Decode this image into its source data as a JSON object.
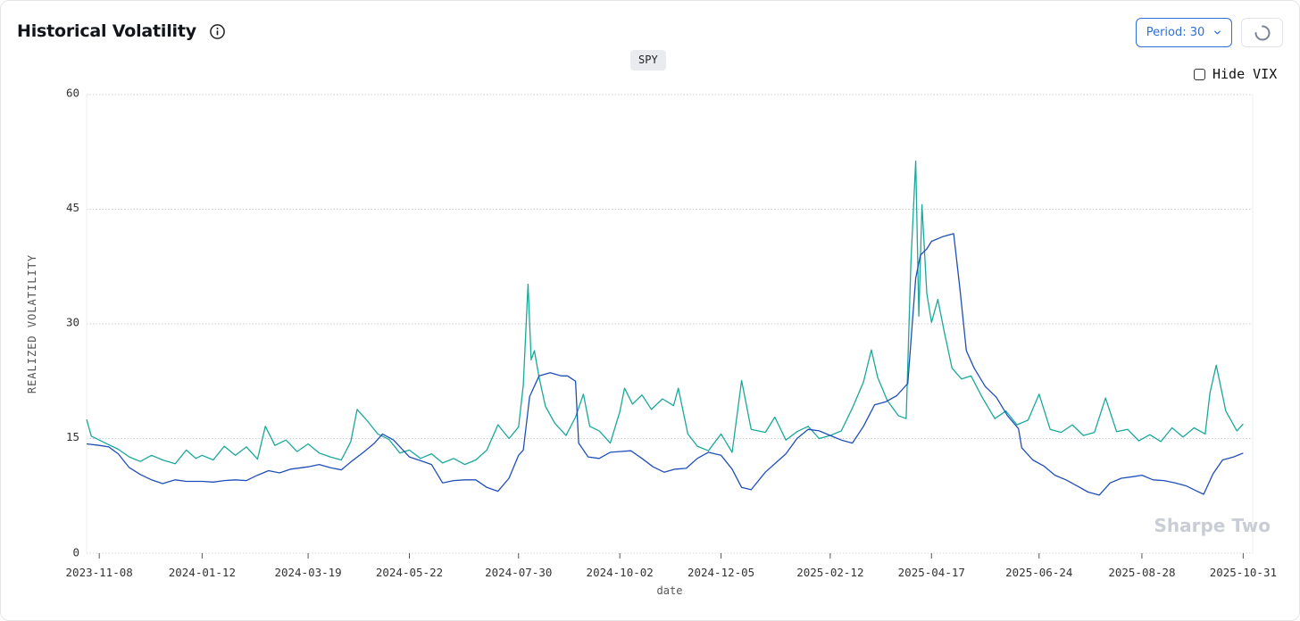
{
  "header": {
    "title": "Historical Volatility",
    "period_label": "Period: 30",
    "ticker_badge": "SPY",
    "hide_vix_label": "Hide VIX",
    "hide_vix_checked": false
  },
  "icons": {
    "info": "info-icon",
    "dropdown": "chevron-down-icon",
    "refresh": "loading-spinner-icon"
  },
  "watermark": "Sharpe Two",
  "chart_data": {
    "type": "line",
    "xlabel": "date",
    "ylabel": "REALIZED VOLATILITY",
    "ylim": [
      0,
      60
    ],
    "yticks": [
      0,
      15,
      30,
      45,
      60
    ],
    "xrange": [
      "2023-10-31",
      "2025-11-06"
    ],
    "xticks": [
      "2023-11-08",
      "2024-01-12",
      "2024-03-19",
      "2024-05-22",
      "2024-07-30",
      "2024-10-02",
      "2024-12-05",
      "2025-02-12",
      "2025-04-17",
      "2025-06-24",
      "2025-08-28",
      "2025-10-31"
    ],
    "grid": true,
    "colors": {
      "teal": "#1aa89a",
      "blue": "#1f4fb8"
    },
    "series": [
      {
        "color": "#1aa89a",
        "points": [
          [
            "2023-10-31",
            17.5
          ],
          [
            "2023-11-03",
            15.3
          ],
          [
            "2023-11-08",
            14.8
          ],
          [
            "2023-11-14",
            14.2
          ],
          [
            "2023-11-20",
            13.6
          ],
          [
            "2023-11-27",
            12.6
          ],
          [
            "2023-12-04",
            12.0
          ],
          [
            "2023-12-11",
            12.8
          ],
          [
            "2023-12-18",
            12.2
          ],
          [
            "2023-12-26",
            11.7
          ],
          [
            "2024-01-02",
            13.5
          ],
          [
            "2024-01-08",
            12.4
          ],
          [
            "2024-01-12",
            12.8
          ],
          [
            "2024-01-19",
            12.2
          ],
          [
            "2024-01-26",
            14.0
          ],
          [
            "2024-02-02",
            12.8
          ],
          [
            "2024-02-09",
            13.9
          ],
          [
            "2024-02-16",
            12.3
          ],
          [
            "2024-02-21",
            16.6
          ],
          [
            "2024-02-27",
            14.1
          ],
          [
            "2024-03-05",
            14.8
          ],
          [
            "2024-03-12",
            13.3
          ],
          [
            "2024-03-19",
            14.3
          ],
          [
            "2024-03-26",
            13.1
          ],
          [
            "2024-04-02",
            12.6
          ],
          [
            "2024-04-09",
            12.2
          ],
          [
            "2024-04-15",
            14.6
          ],
          [
            "2024-04-19",
            18.8
          ],
          [
            "2024-04-25",
            17.4
          ],
          [
            "2024-05-02",
            15.6
          ],
          [
            "2024-05-09",
            14.9
          ],
          [
            "2024-05-16",
            13.1
          ],
          [
            "2024-05-22",
            13.5
          ],
          [
            "2024-05-29",
            12.4
          ],
          [
            "2024-06-05",
            13.0
          ],
          [
            "2024-06-12",
            11.8
          ],
          [
            "2024-06-19",
            12.4
          ],
          [
            "2024-06-26",
            11.6
          ],
          [
            "2024-07-03",
            12.2
          ],
          [
            "2024-07-10",
            13.5
          ],
          [
            "2024-07-17",
            16.8
          ],
          [
            "2024-07-24",
            15.0
          ],
          [
            "2024-07-30",
            16.5
          ],
          [
            "2024-08-02",
            22.0
          ],
          [
            "2024-08-05",
            35.2
          ],
          [
            "2024-08-07",
            25.3
          ],
          [
            "2024-08-09",
            26.5
          ],
          [
            "2024-08-12",
            23.0
          ],
          [
            "2024-08-16",
            19.2
          ],
          [
            "2024-08-22",
            17.0
          ],
          [
            "2024-08-29",
            15.4
          ],
          [
            "2024-09-04",
            17.8
          ],
          [
            "2024-09-09",
            20.8
          ],
          [
            "2024-09-13",
            16.6
          ],
          [
            "2024-09-19",
            16.0
          ],
          [
            "2024-09-26",
            14.4
          ],
          [
            "2024-10-02",
            18.5
          ],
          [
            "2024-10-05",
            21.6
          ],
          [
            "2024-10-10",
            19.5
          ],
          [
            "2024-10-16",
            20.7
          ],
          [
            "2024-10-22",
            18.8
          ],
          [
            "2024-10-29",
            20.2
          ],
          [
            "2024-11-05",
            19.3
          ],
          [
            "2024-11-08",
            21.6
          ],
          [
            "2024-11-14",
            15.6
          ],
          [
            "2024-11-20",
            14.0
          ],
          [
            "2024-11-27",
            13.4
          ],
          [
            "2024-12-05",
            15.6
          ],
          [
            "2024-12-12",
            13.2
          ],
          [
            "2024-12-18",
            22.6
          ],
          [
            "2024-12-24",
            16.2
          ],
          [
            "2025-01-02",
            15.8
          ],
          [
            "2025-01-08",
            17.8
          ],
          [
            "2025-01-15",
            14.8
          ],
          [
            "2025-01-22",
            15.9
          ],
          [
            "2025-01-29",
            16.6
          ],
          [
            "2025-02-05",
            15.0
          ],
          [
            "2025-02-12",
            15.4
          ],
          [
            "2025-02-19",
            16.0
          ],
          [
            "2025-02-26",
            19.0
          ],
          [
            "2025-03-05",
            22.4
          ],
          [
            "2025-03-10",
            26.6
          ],
          [
            "2025-03-14",
            23.0
          ],
          [
            "2025-03-20",
            20.0
          ],
          [
            "2025-03-27",
            18.0
          ],
          [
            "2025-04-01",
            17.6
          ],
          [
            "2025-04-04",
            38.0
          ],
          [
            "2025-04-07",
            51.3
          ],
          [
            "2025-04-09",
            31.0
          ],
          [
            "2025-04-11",
            45.6
          ],
          [
            "2025-04-14",
            34.0
          ],
          [
            "2025-04-17",
            30.2
          ],
          [
            "2025-04-21",
            33.2
          ],
          [
            "2025-04-25",
            29.0
          ],
          [
            "2025-04-30",
            24.2
          ],
          [
            "2025-05-06",
            22.8
          ],
          [
            "2025-05-12",
            23.2
          ],
          [
            "2025-05-19",
            20.4
          ],
          [
            "2025-05-27",
            17.6
          ],
          [
            "2025-06-03",
            18.6
          ],
          [
            "2025-06-10",
            16.8
          ],
          [
            "2025-06-17",
            17.4
          ],
          [
            "2025-06-24",
            20.8
          ],
          [
            "2025-07-01",
            16.2
          ],
          [
            "2025-07-08",
            15.8
          ],
          [
            "2025-07-15",
            16.8
          ],
          [
            "2025-07-22",
            15.4
          ],
          [
            "2025-07-29",
            15.8
          ],
          [
            "2025-08-05",
            20.3
          ],
          [
            "2025-08-12",
            15.9
          ],
          [
            "2025-08-19",
            16.2
          ],
          [
            "2025-08-26",
            14.7
          ],
          [
            "2025-09-02",
            15.5
          ],
          [
            "2025-09-09",
            14.6
          ],
          [
            "2025-09-16",
            16.4
          ],
          [
            "2025-09-23",
            15.2
          ],
          [
            "2025-09-30",
            16.4
          ],
          [
            "2025-10-07",
            15.6
          ],
          [
            "2025-10-10",
            21.0
          ],
          [
            "2025-10-14",
            24.6
          ],
          [
            "2025-10-20",
            18.6
          ],
          [
            "2025-10-27",
            16.0
          ],
          [
            "2025-10-31",
            16.9
          ]
        ]
      },
      {
        "color": "#1f4fb8",
        "points": [
          [
            "2023-10-31",
            14.3
          ],
          [
            "2023-11-08",
            14.1
          ],
          [
            "2023-11-14",
            13.9
          ],
          [
            "2023-11-20",
            13.0
          ],
          [
            "2023-11-27",
            11.2
          ],
          [
            "2023-12-04",
            10.3
          ],
          [
            "2023-12-11",
            9.6
          ],
          [
            "2023-12-18",
            9.1
          ],
          [
            "2023-12-26",
            9.6
          ],
          [
            "2024-01-02",
            9.4
          ],
          [
            "2024-01-12",
            9.4
          ],
          [
            "2024-01-19",
            9.3
          ],
          [
            "2024-01-26",
            9.5
          ],
          [
            "2024-02-02",
            9.6
          ],
          [
            "2024-02-09",
            9.5
          ],
          [
            "2024-02-16",
            10.2
          ],
          [
            "2024-02-23",
            10.8
          ],
          [
            "2024-03-01",
            10.5
          ],
          [
            "2024-03-08",
            11.0
          ],
          [
            "2024-03-19",
            11.3
          ],
          [
            "2024-03-26",
            11.6
          ],
          [
            "2024-04-02",
            11.2
          ],
          [
            "2024-04-09",
            10.9
          ],
          [
            "2024-04-16",
            12.1
          ],
          [
            "2024-04-23",
            13.2
          ],
          [
            "2024-04-30",
            14.4
          ],
          [
            "2024-05-05",
            15.6
          ],
          [
            "2024-05-12",
            14.8
          ],
          [
            "2024-05-22",
            12.6
          ],
          [
            "2024-05-29",
            12.1
          ],
          [
            "2024-06-05",
            11.6
          ],
          [
            "2024-06-12",
            9.2
          ],
          [
            "2024-06-19",
            9.5
          ],
          [
            "2024-06-26",
            9.6
          ],
          [
            "2024-07-03",
            9.6
          ],
          [
            "2024-07-10",
            8.6
          ],
          [
            "2024-07-17",
            8.1
          ],
          [
            "2024-07-24",
            9.8
          ],
          [
            "2024-07-30",
            12.8
          ],
          [
            "2024-08-02",
            13.5
          ],
          [
            "2024-08-06",
            20.5
          ],
          [
            "2024-08-12",
            23.2
          ],
          [
            "2024-08-19",
            23.6
          ],
          [
            "2024-08-26",
            23.2
          ],
          [
            "2024-08-30",
            23.2
          ],
          [
            "2024-09-04",
            22.5
          ],
          [
            "2024-09-06",
            14.4
          ],
          [
            "2024-09-12",
            12.6
          ],
          [
            "2024-09-19",
            12.4
          ],
          [
            "2024-09-26",
            13.2
          ],
          [
            "2024-10-02",
            13.3
          ],
          [
            "2024-10-09",
            13.4
          ],
          [
            "2024-10-16",
            12.4
          ],
          [
            "2024-10-23",
            11.3
          ],
          [
            "2024-10-30",
            10.6
          ],
          [
            "2024-11-06",
            11.0
          ],
          [
            "2024-11-13",
            11.1
          ],
          [
            "2024-11-20",
            12.4
          ],
          [
            "2024-11-27",
            13.2
          ],
          [
            "2024-12-05",
            12.8
          ],
          [
            "2024-12-12",
            11.0
          ],
          [
            "2024-12-18",
            8.6
          ],
          [
            "2024-12-24",
            8.3
          ],
          [
            "2025-01-02",
            10.6
          ],
          [
            "2025-01-09",
            11.9
          ],
          [
            "2025-01-15",
            13.0
          ],
          [
            "2025-01-22",
            15.0
          ],
          [
            "2025-01-29",
            16.2
          ],
          [
            "2025-02-05",
            16.0
          ],
          [
            "2025-02-12",
            15.4
          ],
          [
            "2025-02-19",
            14.8
          ],
          [
            "2025-02-26",
            14.4
          ],
          [
            "2025-03-05",
            16.6
          ],
          [
            "2025-03-12",
            19.4
          ],
          [
            "2025-03-19",
            19.8
          ],
          [
            "2025-03-26",
            20.6
          ],
          [
            "2025-04-02",
            22.2
          ],
          [
            "2025-04-07",
            36.0
          ],
          [
            "2025-04-10",
            39.0
          ],
          [
            "2025-04-14",
            39.8
          ],
          [
            "2025-04-17",
            40.8
          ],
          [
            "2025-04-24",
            41.4
          ],
          [
            "2025-05-01",
            41.8
          ],
          [
            "2025-05-05",
            34.5
          ],
          [
            "2025-05-09",
            26.5
          ],
          [
            "2025-05-14",
            24.2
          ],
          [
            "2025-05-21",
            21.8
          ],
          [
            "2025-05-28",
            20.4
          ],
          [
            "2025-06-04",
            18.0
          ],
          [
            "2025-06-11",
            16.3
          ],
          [
            "2025-06-13",
            13.8
          ],
          [
            "2025-06-20",
            12.2
          ],
          [
            "2025-06-27",
            11.4
          ],
          [
            "2025-07-04",
            10.2
          ],
          [
            "2025-07-11",
            9.6
          ],
          [
            "2025-07-18",
            8.8
          ],
          [
            "2025-07-25",
            8.0
          ],
          [
            "2025-08-01",
            7.6
          ],
          [
            "2025-08-08",
            9.2
          ],
          [
            "2025-08-15",
            9.8
          ],
          [
            "2025-08-22",
            10.0
          ],
          [
            "2025-08-28",
            10.2
          ],
          [
            "2025-09-04",
            9.6
          ],
          [
            "2025-09-11",
            9.5
          ],
          [
            "2025-09-18",
            9.2
          ],
          [
            "2025-09-25",
            8.8
          ],
          [
            "2025-10-01",
            8.2
          ],
          [
            "2025-10-06",
            7.7
          ],
          [
            "2025-10-12",
            10.4
          ],
          [
            "2025-10-18",
            12.2
          ],
          [
            "2025-10-25",
            12.6
          ],
          [
            "2025-10-31",
            13.1
          ]
        ]
      }
    ]
  }
}
